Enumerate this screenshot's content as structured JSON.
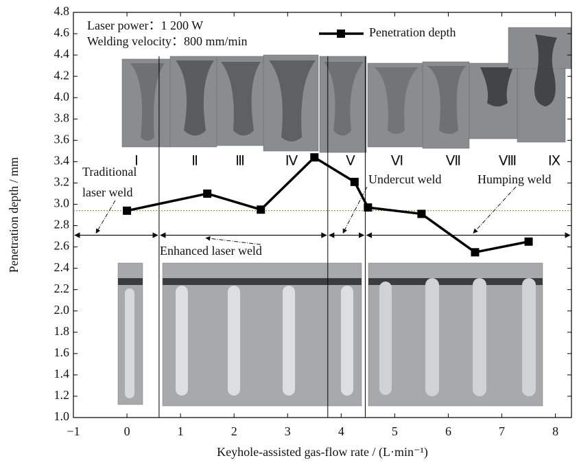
{
  "chart_data": {
    "type": "line",
    "x_label": "Keyhole-assisted gas-flow rate / (L·min⁻¹)",
    "y_label": "Penetration depth / mm",
    "series": [
      {
        "name": "Penetration depth",
        "color": "#000000",
        "x": [
          0,
          1.5,
          2.5,
          3.5,
          4.25,
          4.5,
          5.5,
          6.5,
          7.5
        ],
        "values": [
          2.94,
          3.1,
          2.95,
          3.44,
          3.21,
          2.97,
          2.91,
          2.55,
          2.65
        ]
      }
    ],
    "xlim": [
      -1,
      8.3
    ],
    "ylim": [
      1.0,
      4.8
    ],
    "xticks": [
      {
        "value": -1,
        "label": "−1"
      },
      0,
      1,
      2,
      3,
      4,
      5,
      6,
      7,
      8
    ],
    "yticks": [
      {
        "value": 1,
        "label": "1.0"
      },
      1.2,
      1.4,
      1.6,
      1.8,
      {
        "value": 2,
        "label": "2.0"
      },
      2.2,
      2.4,
      2.6,
      2.8,
      {
        "value": 3,
        "label": "3.0"
      },
      3.2,
      3.4,
      3.6,
      3.8,
      {
        "value": 4,
        "label": "4.0"
      },
      4.2,
      4.4,
      4.6,
      4.8
    ],
    "reference_line": 2.94,
    "reference_color": "#7a7a2a",
    "dividers": [
      0.6,
      3.75,
      4.45
    ],
    "region_arrows_y": 2.71,
    "weld_labels": [
      "Ⅰ",
      "Ⅱ",
      "Ⅲ",
      "Ⅳ",
      "Ⅴ",
      "Ⅵ",
      "Ⅶ",
      "Ⅷ",
      "Ⅸ"
    ],
    "annotations": {
      "laser_power": "Laser power：1 200 W",
      "welding_velocity": "Welding velocity：800 mm/min",
      "traditional_1": "Traditional",
      "traditional_2": "laser weld",
      "enhanced": "Enhanced laser weld",
      "undercut": "Undercut weld",
      "humping": "Humping weld"
    }
  }
}
